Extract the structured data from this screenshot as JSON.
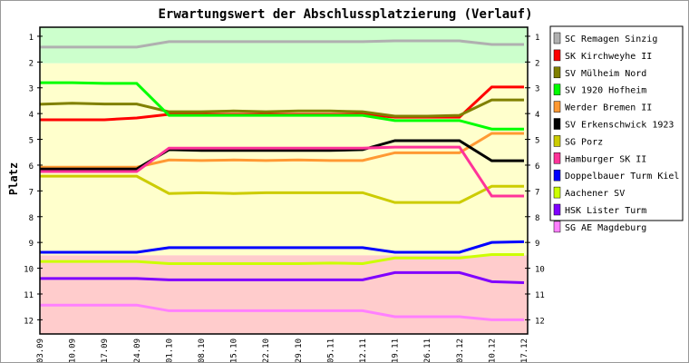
{
  "chart_data": {
    "type": "line",
    "title": "Erwartungswert der Abschlussplatzierung (Verlauf)",
    "ylabel": "Platz",
    "xlabel": "",
    "ylim": [
      0.65,
      12.55
    ],
    "y_inverted": true,
    "yticks": [
      1,
      2,
      3,
      4,
      5,
      6,
      7,
      8,
      9,
      10,
      11,
      12
    ],
    "x": [
      "03.09",
      "10.09",
      "17.09",
      "24.09",
      "01.10",
      "08.10",
      "15.10",
      "22.10",
      "29.10",
      "05.11",
      "12.11",
      "19.11",
      "26.11",
      "03.12",
      "10.12",
      "17.12"
    ],
    "bands": [
      {
        "from": 0.65,
        "to": 2.05,
        "color": "#ccffcc"
      },
      {
        "from": 2.05,
        "to": 9.5,
        "color": "#ffffcc"
      },
      {
        "from": 9.5,
        "to": 12.55,
        "color": "#ffcccc"
      }
    ],
    "legend_position": "right",
    "series": [
      {
        "name": "SC Remagen Sinzig",
        "color": "#b0b0b0",
        "values": [
          1.42,
          1.42,
          1.42,
          1.42,
          1.21,
          1.21,
          1.21,
          1.21,
          1.21,
          1.21,
          1.21,
          1.18,
          1.18,
          1.18,
          1.32,
          1.32
        ]
      },
      {
        "name": "SK Kirchweyhe II",
        "color": "#ff0000",
        "values": [
          4.24,
          4.24,
          4.24,
          4.17,
          4.03,
          4.03,
          4.03,
          4.03,
          4.03,
          4.03,
          4.03,
          4.14,
          4.14,
          4.14,
          2.97,
          2.97
        ]
      },
      {
        "name": "SV Mülheim Nord",
        "color": "#808000",
        "values": [
          3.64,
          3.6,
          3.63,
          3.63,
          3.93,
          3.93,
          3.9,
          3.93,
          3.9,
          3.9,
          3.93,
          4.1,
          4.1,
          4.07,
          3.47,
          3.47
        ]
      },
      {
        "name": "SV 1920 Hofheim",
        "color": "#00ff00",
        "values": [
          2.8,
          2.8,
          2.83,
          2.83,
          4.07,
          4.07,
          4.07,
          4.07,
          4.07,
          4.07,
          4.07,
          4.27,
          4.27,
          4.27,
          4.6,
          4.6
        ]
      },
      {
        "name": "Werder Bremen II",
        "color": "#ff9933",
        "values": [
          6.08,
          6.08,
          6.08,
          6.08,
          5.8,
          5.82,
          5.8,
          5.82,
          5.8,
          5.82,
          5.82,
          5.52,
          5.52,
          5.52,
          4.77,
          4.77
        ]
      },
      {
        "name": "SV Erkenschwick 1923",
        "color": "#000000",
        "values": [
          6.15,
          6.15,
          6.15,
          6.15,
          5.4,
          5.43,
          5.43,
          5.43,
          5.43,
          5.43,
          5.4,
          5.05,
          5.05,
          5.05,
          5.83,
          5.83
        ]
      },
      {
        "name": "SG Porz",
        "color": "#cccc00",
        "values": [
          6.43,
          6.43,
          6.43,
          6.43,
          7.1,
          7.07,
          7.1,
          7.07,
          7.07,
          7.07,
          7.07,
          7.45,
          7.45,
          7.45,
          6.82,
          6.82
        ]
      },
      {
        "name": "Hamburger SK II",
        "color": "#ff3399",
        "values": [
          6.25,
          6.25,
          6.25,
          6.25,
          5.34,
          5.34,
          5.34,
          5.34,
          5.34,
          5.34,
          5.34,
          5.3,
          5.3,
          5.3,
          7.2,
          7.2
        ]
      },
      {
        "name": "Doppelbauer Turm Kiel",
        "color": "#0000ff",
        "values": [
          9.38,
          9.38,
          9.38,
          9.38,
          9.2,
          9.2,
          9.2,
          9.2,
          9.2,
          9.2,
          9.2,
          9.38,
          9.38,
          9.38,
          9.0,
          8.97
        ]
      },
      {
        "name": "Aachener SV",
        "color": "#ccff00",
        "values": [
          9.74,
          9.74,
          9.74,
          9.74,
          9.82,
          9.82,
          9.82,
          9.82,
          9.82,
          9.8,
          9.82,
          9.6,
          9.6,
          9.6,
          9.47,
          9.47
        ]
      },
      {
        "name": "HSK Lister Turm",
        "color": "#8000ff",
        "values": [
          10.4,
          10.4,
          10.4,
          10.4,
          10.45,
          10.45,
          10.45,
          10.45,
          10.45,
          10.45,
          10.45,
          10.17,
          10.17,
          10.17,
          10.52,
          10.56
        ]
      },
      {
        "name": "SG AE Magdeburg",
        "color": "#ff80ff",
        "values": [
          11.43,
          11.43,
          11.43,
          11.43,
          11.65,
          11.65,
          11.65,
          11.65,
          11.65,
          11.65,
          11.65,
          11.88,
          11.88,
          11.88,
          12.0,
          12.0
        ]
      }
    ]
  }
}
